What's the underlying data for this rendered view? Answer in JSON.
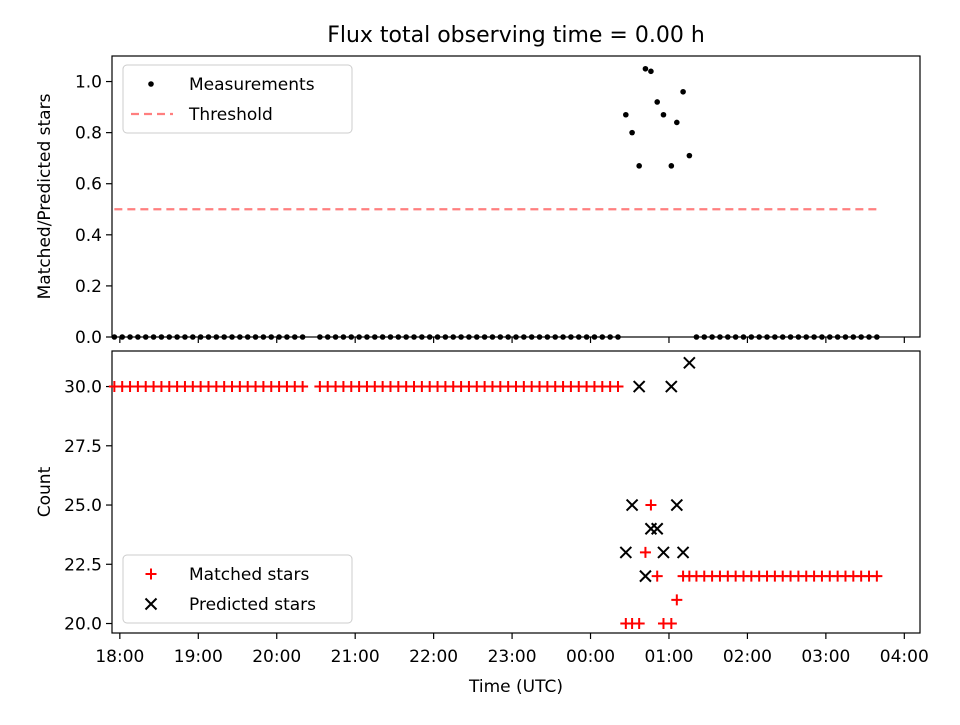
{
  "figure": {
    "title": "Flux total observing time = 0.00 h"
  },
  "chart_data": [
    {
      "type": "scatter",
      "panel": "top",
      "ylabel": "Matched/Predicted stars",
      "xlabel": "",
      "ylim": [
        0,
        1.1
      ],
      "yticks": [
        0.0,
        0.2,
        0.4,
        0.6,
        0.8,
        1.0
      ],
      "ytick_labels": [
        "0.0",
        "0.2",
        "0.4",
        "0.6",
        "0.8",
        "1.0"
      ],
      "xlim": [
        17.9,
        28.2
      ],
      "grid": false,
      "legend_position": "top-left",
      "series": [
        {
          "name": "Measurements",
          "marker": "dot",
          "color": "#000000",
          "points": [
            [
              17.93,
              0
            ],
            [
              18.03,
              0
            ],
            [
              18.13,
              0
            ],
            [
              18.23,
              0
            ],
            [
              18.33,
              0
            ],
            [
              18.43,
              0
            ],
            [
              18.53,
              0
            ],
            [
              18.63,
              0
            ],
            [
              18.73,
              0
            ],
            [
              18.83,
              0
            ],
            [
              18.93,
              0
            ],
            [
              19.03,
              0
            ],
            [
              19.13,
              0
            ],
            [
              19.23,
              0
            ],
            [
              19.33,
              0
            ],
            [
              19.43,
              0
            ],
            [
              19.53,
              0
            ],
            [
              19.63,
              0
            ],
            [
              19.73,
              0
            ],
            [
              19.83,
              0
            ],
            [
              19.93,
              0
            ],
            [
              20.03,
              0
            ],
            [
              20.13,
              0
            ],
            [
              20.23,
              0
            ],
            [
              20.33,
              0
            ],
            [
              20.55,
              0
            ],
            [
              20.65,
              0
            ],
            [
              20.75,
              0
            ],
            [
              20.85,
              0
            ],
            [
              20.95,
              0
            ],
            [
              21.05,
              0
            ],
            [
              21.15,
              0
            ],
            [
              21.25,
              0
            ],
            [
              21.35,
              0
            ],
            [
              21.45,
              0
            ],
            [
              21.55,
              0
            ],
            [
              21.65,
              0
            ],
            [
              21.75,
              0
            ],
            [
              21.85,
              0
            ],
            [
              21.95,
              0
            ],
            [
              22.05,
              0
            ],
            [
              22.15,
              0
            ],
            [
              22.25,
              0
            ],
            [
              22.35,
              0
            ],
            [
              22.45,
              0
            ],
            [
              22.55,
              0
            ],
            [
              22.65,
              0
            ],
            [
              22.75,
              0
            ],
            [
              22.85,
              0
            ],
            [
              22.95,
              0
            ],
            [
              23.05,
              0
            ],
            [
              23.15,
              0
            ],
            [
              23.25,
              0
            ],
            [
              23.35,
              0
            ],
            [
              23.45,
              0
            ],
            [
              23.55,
              0
            ],
            [
              23.65,
              0
            ],
            [
              23.75,
              0
            ],
            [
              23.85,
              0
            ],
            [
              23.95,
              0
            ],
            [
              24.05,
              0
            ],
            [
              24.15,
              0
            ],
            [
              24.25,
              0
            ],
            [
              24.35,
              0
            ],
            [
              24.45,
              0.87
            ],
            [
              24.53,
              0.8
            ],
            [
              24.62,
              0.67
            ],
            [
              24.7,
              1.05
            ],
            [
              24.77,
              1.04
            ],
            [
              24.85,
              0.92
            ],
            [
              24.93,
              0.87
            ],
            [
              25.03,
              0.67
            ],
            [
              25.1,
              0.84
            ],
            [
              25.18,
              0.96
            ],
            [
              25.26,
              0.71
            ],
            [
              25.35,
              0
            ],
            [
              25.45,
              0
            ],
            [
              25.55,
              0
            ],
            [
              25.65,
              0
            ],
            [
              25.75,
              0
            ],
            [
              25.85,
              0
            ],
            [
              25.95,
              0
            ],
            [
              26.05,
              0
            ],
            [
              26.15,
              0
            ],
            [
              26.25,
              0
            ],
            [
              26.35,
              0
            ],
            [
              26.45,
              0
            ],
            [
              26.55,
              0
            ],
            [
              26.65,
              0
            ],
            [
              26.75,
              0
            ],
            [
              26.85,
              0
            ],
            [
              26.95,
              0
            ],
            [
              27.05,
              0
            ],
            [
              27.15,
              0
            ],
            [
              27.25,
              0
            ],
            [
              27.35,
              0
            ],
            [
              27.45,
              0
            ],
            [
              27.55,
              0
            ],
            [
              27.65,
              0
            ]
          ]
        },
        {
          "name": "Threshold",
          "marker": "dashed-line",
          "color": "#ff7f7f",
          "points": [
            [
              17.93,
              0.5
            ],
            [
              27.65,
              0.5
            ]
          ]
        }
      ]
    },
    {
      "type": "scatter",
      "panel": "bottom",
      "ylabel": "Count",
      "xlabel": "Time (UTC)",
      "ylim": [
        19.6,
        31.5
      ],
      "yticks": [
        20.0,
        22.5,
        25.0,
        27.5,
        30.0
      ],
      "ytick_labels": [
        "20.0",
        "22.5",
        "25.0",
        "27.5",
        "30.0"
      ],
      "xlim": [
        17.9,
        28.2
      ],
      "xticks": [
        18,
        19,
        20,
        21,
        22,
        23,
        24,
        25,
        26,
        27,
        28
      ],
      "xtick_labels": [
        "18:00",
        "19:00",
        "20:00",
        "21:00",
        "22:00",
        "23:00",
        "00:00",
        "01:00",
        "02:00",
        "03:00",
        "04:00"
      ],
      "grid": false,
      "legend_position": "bottom-left",
      "series": [
        {
          "name": "Matched stars",
          "marker": "plus",
          "color": "#ff0000",
          "points": [
            [
              17.93,
              30
            ],
            [
              18.03,
              30
            ],
            [
              18.13,
              30
            ],
            [
              18.23,
              30
            ],
            [
              18.33,
              30
            ],
            [
              18.43,
              30
            ],
            [
              18.53,
              30
            ],
            [
              18.63,
              30
            ],
            [
              18.73,
              30
            ],
            [
              18.83,
              30
            ],
            [
              18.93,
              30
            ],
            [
              19.03,
              30
            ],
            [
              19.13,
              30
            ],
            [
              19.23,
              30
            ],
            [
              19.33,
              30
            ],
            [
              19.43,
              30
            ],
            [
              19.53,
              30
            ],
            [
              19.63,
              30
            ],
            [
              19.73,
              30
            ],
            [
              19.83,
              30
            ],
            [
              19.93,
              30
            ],
            [
              20.03,
              30
            ],
            [
              20.13,
              30
            ],
            [
              20.23,
              30
            ],
            [
              20.33,
              30
            ],
            [
              20.55,
              30
            ],
            [
              20.65,
              30
            ],
            [
              20.75,
              30
            ],
            [
              20.85,
              30
            ],
            [
              20.95,
              30
            ],
            [
              21.05,
              30
            ],
            [
              21.15,
              30
            ],
            [
              21.25,
              30
            ],
            [
              21.35,
              30
            ],
            [
              21.45,
              30
            ],
            [
              21.55,
              30
            ],
            [
              21.65,
              30
            ],
            [
              21.75,
              30
            ],
            [
              21.85,
              30
            ],
            [
              21.95,
              30
            ],
            [
              22.05,
              30
            ],
            [
              22.15,
              30
            ],
            [
              22.25,
              30
            ],
            [
              22.35,
              30
            ],
            [
              22.45,
              30
            ],
            [
              22.55,
              30
            ],
            [
              22.65,
              30
            ],
            [
              22.75,
              30
            ],
            [
              22.85,
              30
            ],
            [
              22.95,
              30
            ],
            [
              23.05,
              30
            ],
            [
              23.15,
              30
            ],
            [
              23.25,
              30
            ],
            [
              23.35,
              30
            ],
            [
              23.45,
              30
            ],
            [
              23.55,
              30
            ],
            [
              23.65,
              30
            ],
            [
              23.75,
              30
            ],
            [
              23.85,
              30
            ],
            [
              23.95,
              30
            ],
            [
              24.05,
              30
            ],
            [
              24.15,
              30
            ],
            [
              24.25,
              30
            ],
            [
              24.35,
              30
            ],
            [
              24.45,
              20
            ],
            [
              24.53,
              20
            ],
            [
              24.62,
              20
            ],
            [
              24.7,
              23
            ],
            [
              24.77,
              25
            ],
            [
              24.85,
              22
            ],
            [
              24.93,
              20
            ],
            [
              25.03,
              20
            ],
            [
              25.1,
              21
            ],
            [
              25.18,
              22
            ],
            [
              25.26,
              22
            ],
            [
              25.35,
              22
            ],
            [
              25.45,
              22
            ],
            [
              25.55,
              22
            ],
            [
              25.65,
              22
            ],
            [
              25.75,
              22
            ],
            [
              25.85,
              22
            ],
            [
              25.95,
              22
            ],
            [
              26.05,
              22
            ],
            [
              26.15,
              22
            ],
            [
              26.25,
              22
            ],
            [
              26.35,
              22
            ],
            [
              26.45,
              22
            ],
            [
              26.55,
              22
            ],
            [
              26.65,
              22
            ],
            [
              26.75,
              22
            ],
            [
              26.85,
              22
            ],
            [
              26.95,
              22
            ],
            [
              27.05,
              22
            ],
            [
              27.15,
              22
            ],
            [
              27.25,
              22
            ],
            [
              27.35,
              22
            ],
            [
              27.45,
              22
            ],
            [
              27.55,
              22
            ],
            [
              27.65,
              22
            ]
          ]
        },
        {
          "name": "Predicted stars",
          "marker": "x",
          "color": "#000000",
          "points": [
            [
              24.45,
              23
            ],
            [
              24.53,
              25
            ],
            [
              24.62,
              30
            ],
            [
              24.7,
              22
            ],
            [
              24.77,
              24
            ],
            [
              24.85,
              24
            ],
            [
              24.93,
              23
            ],
            [
              25.03,
              30
            ],
            [
              25.1,
              25
            ],
            [
              25.18,
              23
            ],
            [
              25.26,
              31
            ]
          ]
        }
      ]
    }
  ]
}
